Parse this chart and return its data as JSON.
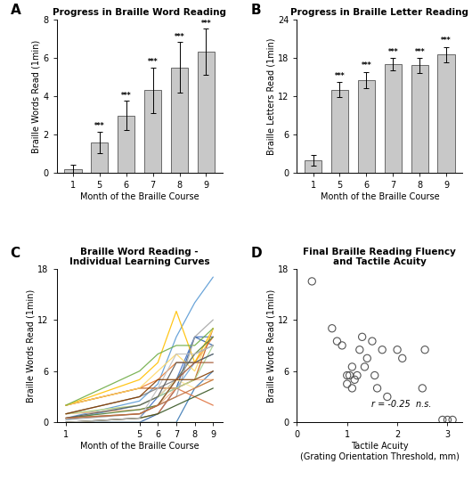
{
  "panel_A": {
    "title": "Progress in Braille Word Reading",
    "label": "A",
    "categories": [
      1,
      5,
      6,
      7,
      8,
      9
    ],
    "means": [
      0.2,
      1.6,
      3.0,
      4.3,
      5.5,
      6.3
    ],
    "errors": [
      0.25,
      0.55,
      0.75,
      1.2,
      1.3,
      1.2
    ],
    "sig": [
      "",
      "***",
      "***",
      "***",
      "***",
      "***"
    ],
    "ylim": [
      0,
      8
    ],
    "yticks": [
      0,
      2,
      4,
      6,
      8
    ],
    "ylabel": "Braille Words Read (1min)",
    "xlabel": "Month of the Braille Course",
    "bar_color": "#c8c8c8",
    "bar_edge": "#555555"
  },
  "panel_B": {
    "title": "Progress in Braille Letter Reading",
    "label": "B",
    "categories": [
      1,
      5,
      6,
      7,
      8,
      9
    ],
    "means": [
      2.0,
      13.0,
      14.5,
      17.0,
      16.8,
      18.5
    ],
    "errors": [
      0.8,
      1.2,
      1.3,
      1.0,
      1.2,
      1.2
    ],
    "sig": [
      "",
      "***",
      "***",
      "***",
      "***",
      "***"
    ],
    "ylim": [
      0,
      24
    ],
    "yticks": [
      0,
      6,
      12,
      18,
      24
    ],
    "ylabel": "Braille Letters Read (1min)",
    "xlabel": "Month of the Braille Course",
    "bar_color": "#c8c8c8",
    "bar_edge": "#555555"
  },
  "panel_C": {
    "title": "Braille Word Reading -\nIndividual Learning Curves",
    "label": "C",
    "xlabel": "Month of the Braille Course",
    "ylabel": "Braille Words Read (1min)",
    "ylim": [
      0,
      18
    ],
    "yticks": [
      0,
      6,
      12,
      18
    ],
    "xticks": [
      1,
      5,
      6,
      7,
      8,
      9
    ],
    "curves": [
      {
        "x": [
          1,
          5,
          6,
          7,
          8,
          9
        ],
        "y": [
          0.5,
          2.5,
          4.5,
          10,
          14,
          17
        ],
        "color": "#5B9BD5"
      },
      {
        "x": [
          1,
          5,
          6,
          7,
          8,
          9
        ],
        "y": [
          0.0,
          0.5,
          3,
          5,
          10,
          10
        ],
        "color": "#4472C4"
      },
      {
        "x": [
          1,
          5,
          6,
          7,
          8,
          9
        ],
        "y": [
          0.0,
          0.0,
          1,
          4,
          10,
          9
        ],
        "color": "#2E5FA3"
      },
      {
        "x": [
          1,
          5,
          6,
          7,
          8,
          9
        ],
        "y": [
          0.3,
          2,
          3,
          4,
          7,
          8
        ],
        "color": "#6FA8DC"
      },
      {
        "x": [
          1,
          5,
          6,
          7,
          8,
          9
        ],
        "y": [
          0.0,
          0.0,
          0,
          0,
          4,
          6
        ],
        "color": "#3D7AB5"
      },
      {
        "x": [
          1,
          5,
          6,
          7,
          8,
          9
        ],
        "y": [
          2,
          4,
          5,
          7,
          7,
          10
        ],
        "color": "#ED7D31"
      },
      {
        "x": [
          1,
          5,
          6,
          7,
          8,
          9
        ],
        "y": [
          2,
          4,
          4,
          4,
          5,
          11
        ],
        "color": "#C55A11"
      },
      {
        "x": [
          1,
          5,
          6,
          7,
          8,
          9
        ],
        "y": [
          1,
          1.5,
          2,
          4,
          5,
          5
        ],
        "color": "#F4B183"
      },
      {
        "x": [
          1,
          5,
          6,
          7,
          8,
          9
        ],
        "y": [
          0.0,
          0.5,
          1,
          4,
          3,
          2
        ],
        "color": "#E07440"
      },
      {
        "x": [
          1,
          5,
          6,
          7,
          8,
          9
        ],
        "y": [
          2,
          5,
          7,
          13,
          7,
          11
        ],
        "color": "#FFC000"
      },
      {
        "x": [
          1,
          5,
          6,
          7,
          8,
          9
        ],
        "y": [
          2,
          4,
          6,
          8,
          6,
          11
        ],
        "color": "#FFD966"
      },
      {
        "x": [
          1,
          5,
          6,
          7,
          8,
          9
        ],
        "y": [
          0.0,
          0.0,
          0,
          0,
          0,
          0
        ],
        "color": "#E5A800"
      },
      {
        "x": [
          1,
          5,
          6,
          7,
          8,
          9
        ],
        "y": [
          1,
          2,
          3,
          5,
          4,
          5
        ],
        "color": "#FFE699"
      },
      {
        "x": [
          1,
          5,
          6,
          7,
          8,
          9
        ],
        "y": [
          2,
          6,
          8,
          9,
          9,
          11
        ],
        "color": "#70AD47"
      },
      {
        "x": [
          1,
          5,
          6,
          7,
          8,
          9
        ],
        "y": [
          0.5,
          1.5,
          2,
          5,
          8,
          10
        ],
        "color": "#548235"
      },
      {
        "x": [
          1,
          5,
          6,
          7,
          8,
          9
        ],
        "y": [
          1,
          2,
          3,
          4,
          5,
          9
        ],
        "color": "#A9D18E"
      },
      {
        "x": [
          1,
          5,
          6,
          7,
          8,
          9
        ],
        "y": [
          0.0,
          0.5,
          1,
          2,
          3,
          4
        ],
        "color": "#375623"
      },
      {
        "x": [
          1,
          5,
          6,
          7,
          8,
          9
        ],
        "y": [
          1,
          3,
          4,
          5,
          8,
          9
        ],
        "color": "#808080"
      },
      {
        "x": [
          1,
          5,
          6,
          7,
          8,
          9
        ],
        "y": [
          0.3,
          1,
          2,
          3,
          10,
          12
        ],
        "color": "#A5A5A5"
      },
      {
        "x": [
          1,
          5,
          6,
          7,
          8,
          9
        ],
        "y": [
          0.5,
          2,
          3,
          7,
          7,
          8
        ],
        "color": "#595959"
      },
      {
        "x": [
          1,
          5,
          6,
          7,
          8,
          9
        ],
        "y": [
          0.0,
          0.5,
          4,
          8,
          8,
          9
        ],
        "color": "#BFBFBF"
      },
      {
        "x": [
          1,
          5,
          6,
          7,
          8,
          9
        ],
        "y": [
          1,
          3,
          5,
          5,
          5,
          6
        ],
        "color": "#833C00"
      },
      {
        "x": [
          1,
          5,
          6,
          7,
          8,
          9
        ],
        "y": [
          0.5,
          1,
          2,
          5,
          7,
          7
        ],
        "color": "#A0522D"
      },
      {
        "x": [
          1,
          5,
          6,
          7,
          8,
          9
        ],
        "y": [
          0.5,
          1,
          2,
          3,
          4,
          5
        ],
        "color": "#C07040"
      }
    ]
  },
  "panel_D": {
    "title": "Final Braille Reading Fluency\nand Tactile Acuity",
    "label": "D",
    "xlabel": "Tactile Acuity\n(Grating Orientation Threshold, mm)",
    "ylabel": "Braille Words Read (1min)",
    "ylim": [
      0,
      18
    ],
    "yticks": [
      0,
      6,
      12,
      18
    ],
    "xlim": [
      0,
      3.3
    ],
    "xticks": [
      0,
      1,
      2,
      3
    ],
    "annotation": "r = -0.25  n.s.",
    "scatter_color": "none",
    "scatter_edge": "#555555",
    "points": [
      [
        0.3,
        16.5
      ],
      [
        0.7,
        11
      ],
      [
        0.8,
        9.5
      ],
      [
        0.9,
        9
      ],
      [
        1.0,
        5.5
      ],
      [
        1.0,
        4.5
      ],
      [
        1.05,
        5.5
      ],
      [
        1.1,
        4.0
      ],
      [
        1.1,
        6.5
      ],
      [
        1.15,
        5.0
      ],
      [
        1.2,
        5.5
      ],
      [
        1.25,
        8.5
      ],
      [
        1.3,
        10
      ],
      [
        1.35,
        6.5
      ],
      [
        1.4,
        7.5
      ],
      [
        1.5,
        9.5
      ],
      [
        1.55,
        5.5
      ],
      [
        1.6,
        4.0
      ],
      [
        1.7,
        8.5
      ],
      [
        1.8,
        3.0
      ],
      [
        2.0,
        8.5
      ],
      [
        2.1,
        7.5
      ],
      [
        2.5,
        4.0
      ],
      [
        2.55,
        8.5
      ],
      [
        2.9,
        0.3
      ],
      [
        3.0,
        0.3
      ],
      [
        3.1,
        0.3
      ]
    ]
  }
}
